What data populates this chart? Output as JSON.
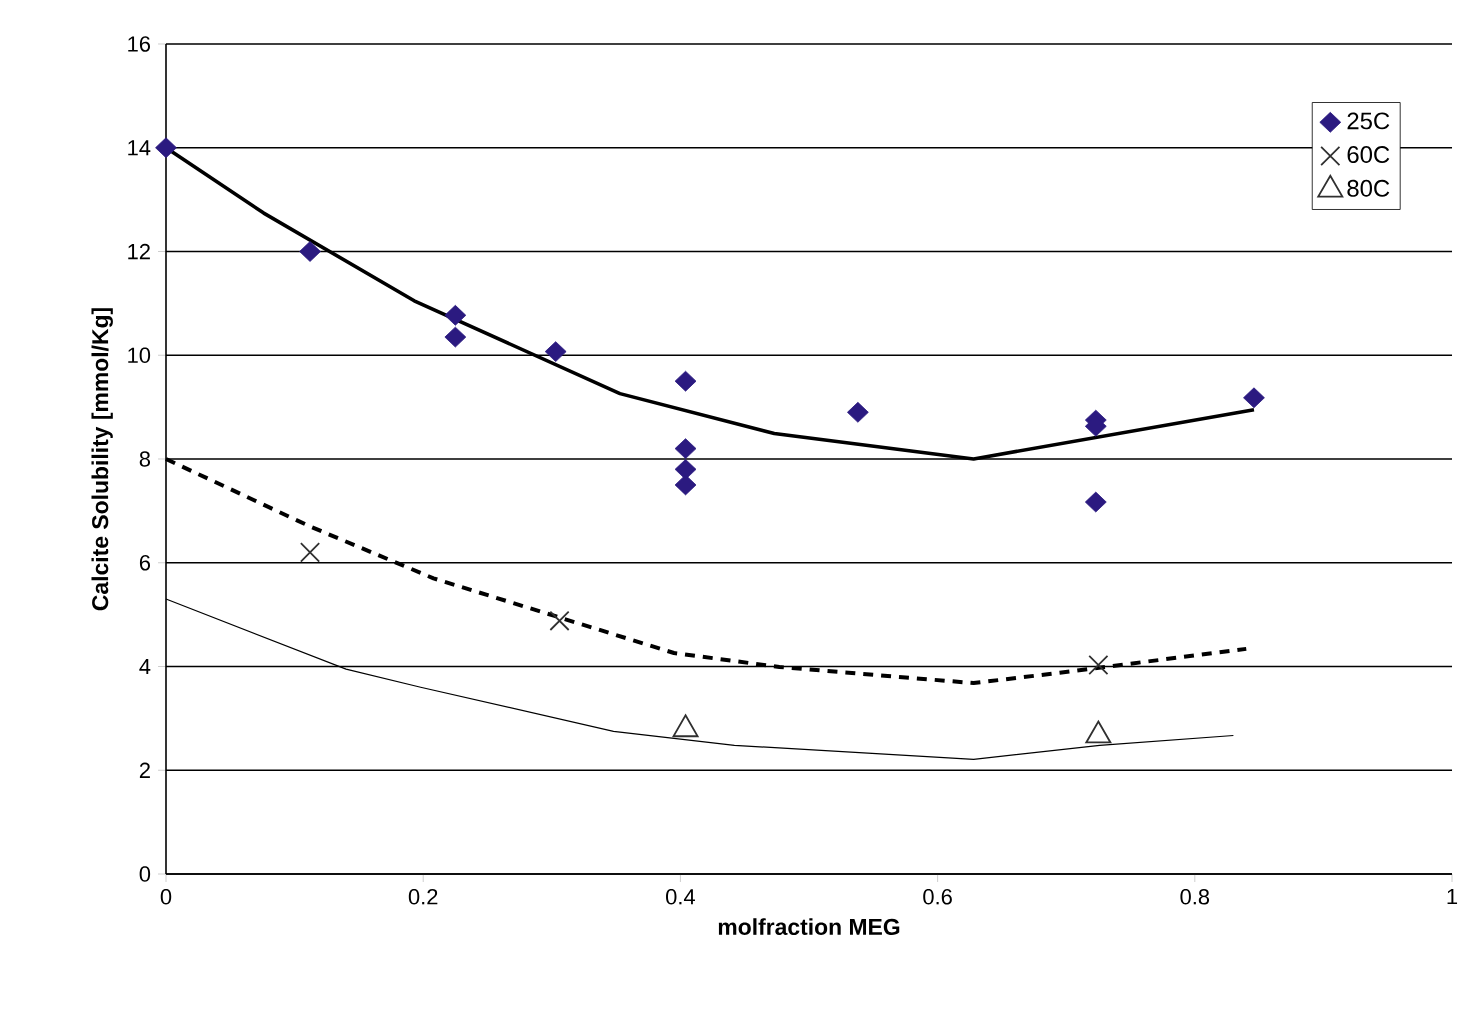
{
  "chart_data": {
    "type": "scatter",
    "xlabel": "molfraction MEG",
    "ylabel": "Calcite Solubility [mmol/Kg]",
    "xlim": [
      0,
      1
    ],
    "xticks": [
      0,
      0.2,
      0.4,
      0.6,
      0.8,
      1
    ],
    "ylim": [
      0,
      16
    ],
    "yticks": [
      0,
      2,
      4,
      6,
      8,
      10,
      12,
      14,
      16
    ],
    "grid": "y",
    "legend": "top right",
    "series": [
      {
        "name": "25C",
        "marker": "diamond",
        "color": "#2b1a80",
        "x": [
          0,
          0.112,
          0.225,
          0.225,
          0.303,
          0.404,
          0.404,
          0.404,
          0.404,
          0.538,
          0.723,
          0.723,
          0.723,
          0.846
        ],
        "values": [
          14,
          12,
          10.77,
          10.35,
          10.07,
          9.5,
          8.2,
          7.8,
          7.5,
          8.9,
          8.75,
          8.63,
          7.17,
          9.18
        ]
      },
      {
        "name": "60C",
        "marker": "cross",
        "color": "#303030",
        "x": [
          0.112,
          0.306,
          0.725
        ],
        "values": [
          6.2,
          4.88,
          4.03
        ]
      },
      {
        "name": "80C",
        "marker": "triangle",
        "color": "#303030",
        "x": [
          0.404,
          0.725
        ],
        "values": [
          2.79,
          2.67
        ]
      },
      {
        "type": "line",
        "line_style": "solid",
        "color": "#000000",
        "x": [
          0,
          0.076,
          0.193,
          0.353,
          0.473,
          0.628,
          0.846
        ],
        "values": [
          14,
          12.74,
          11.05,
          9.26,
          8.49,
          8.0,
          8.95
        ]
      },
      {
        "type": "line",
        "line_style": "dashed",
        "color": "#000000",
        "x": [
          0,
          0.112,
          0.208,
          0.395,
          0.477,
          0.628,
          0.695,
          0.84
        ],
        "values": [
          8.0,
          6.7,
          5.7,
          4.26,
          3.99,
          3.68,
          3.88,
          4.34
        ]
      },
      {
        "type": "line",
        "line_style": "solid",
        "color": "#000000",
        "x": [
          0,
          0.14,
          0.198,
          0.348,
          0.442,
          0.628,
          0.726,
          0.83
        ],
        "values": [
          5.3,
          3.95,
          3.6,
          2.75,
          2.48,
          2.21,
          2.48,
          2.67
        ]
      }
    ]
  }
}
